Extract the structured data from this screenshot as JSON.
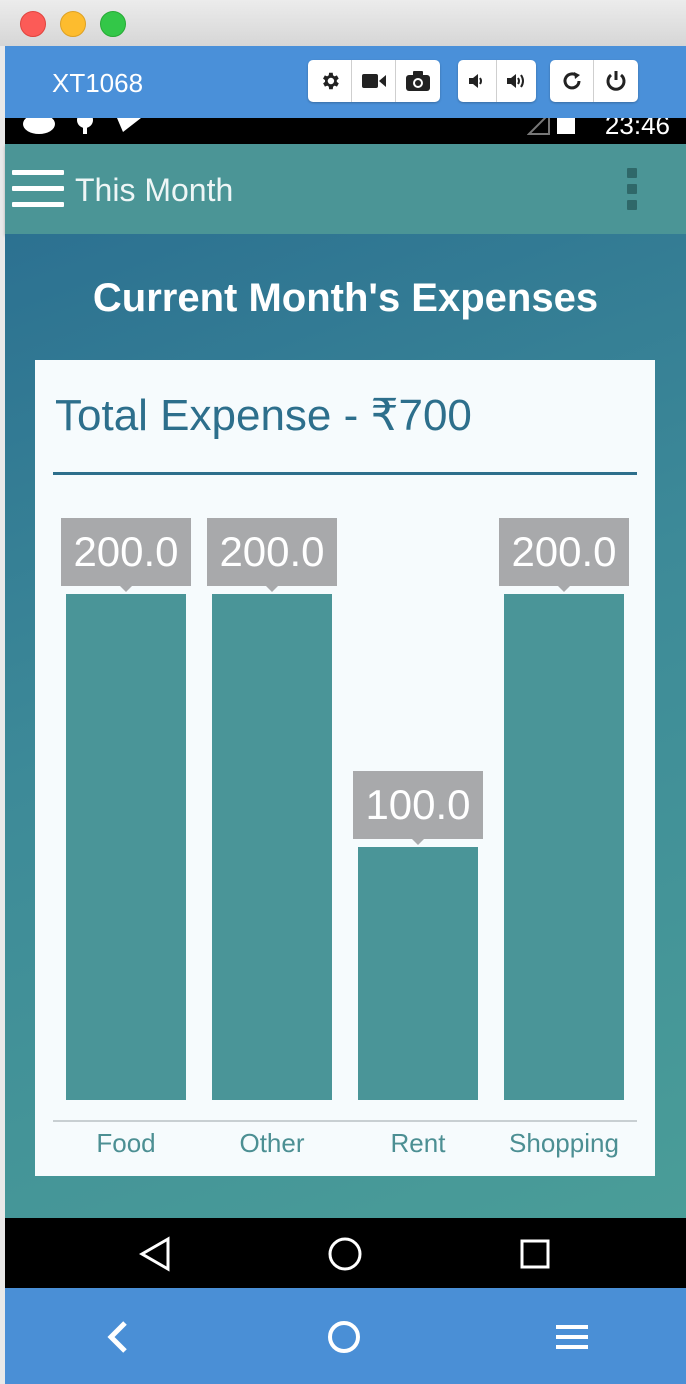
{
  "window": {
    "device_name": "XT1068",
    "toolbar_icons": [
      "settings-icon",
      "video-icon",
      "camera-icon",
      "volume-down-icon",
      "volume-up-icon",
      "rotate-icon",
      "power-icon"
    ]
  },
  "status_bar": {
    "time": "23:46"
  },
  "app_bar": {
    "title": "This Month"
  },
  "main": {
    "heading": "Current Month's Expenses",
    "total_label": "Total Expense - ₹700"
  },
  "chart_data": {
    "type": "bar",
    "categories": [
      "Food",
      "Other",
      "Rent",
      "Shopping"
    ],
    "values": [
      200.0,
      200.0,
      100.0,
      200.0
    ],
    "value_labels": [
      "200.0",
      "200.0",
      "100.0",
      "200.0"
    ],
    "ylim": [
      0,
      200
    ],
    "grid": false,
    "colors": {
      "bar": "#4a9598",
      "label_bubble": "#a8a9ab"
    }
  },
  "colors": {
    "emulator_bar": "#4a90d9",
    "app_bar": "#4b9596",
    "accent_text": "#2d6f8c"
  },
  "android_nav": [
    "back-icon",
    "home-icon",
    "recents-icon"
  ],
  "emulator_nav": [
    "back-icon",
    "home-icon",
    "menu-icon"
  ]
}
